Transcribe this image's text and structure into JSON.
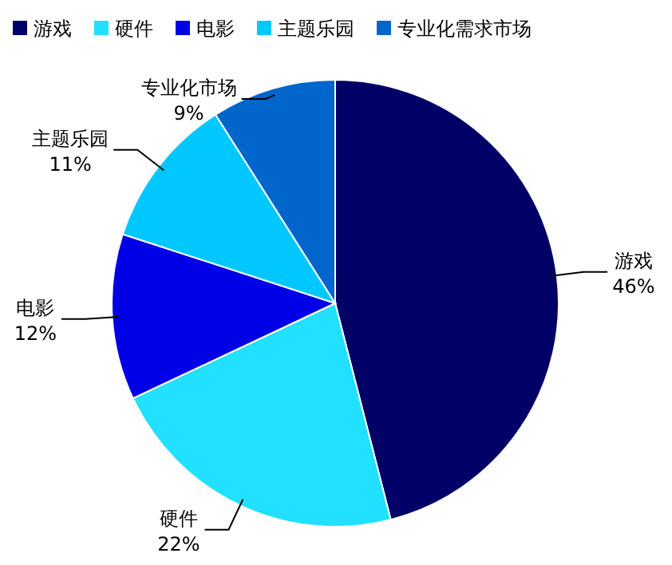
{
  "chart_data": {
    "type": "pie",
    "categories": [
      "游戏",
      "硬件",
      "电影",
      "主题乐园",
      "专业化需求市场"
    ],
    "values": [
      46,
      22,
      12,
      11,
      9
    ],
    "value_labels": [
      "46%",
      "22%",
      "12%",
      "11%",
      "9%"
    ],
    "annotations": [
      "游戏",
      "硬件",
      "电影",
      "主题乐园",
      "专业化市场"
    ],
    "colors": [
      "#000066",
      "#22e0ff",
      "#0000e6",
      "#00c8ff",
      "#0066cc"
    ],
    "legend": "top"
  }
}
